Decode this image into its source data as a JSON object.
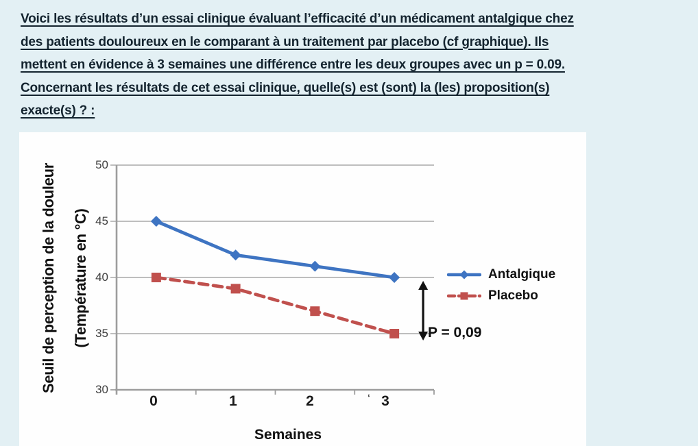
{
  "page": {
    "background_color": "#e3f0f4",
    "panel_color": "#fefefe",
    "question_text_color": "#14242f"
  },
  "question": {
    "lines": [
      "Voici les résultats d’un essai clinique évaluant l’efficacité d’un médicament antalgique chez",
      "des patients douloureux en le comparant à un traitement par placebo (cf graphique). Ils",
      "mettent en évidence à 3 semaines une différence entre les deux groupes avec un p = 0.09.",
      "Concernant les résultats de cet essai clinique, quelle(s) est (sont) la (les) proposition(s)",
      "exacte(s) ? :"
    ]
  },
  "chart_data": {
    "type": "line",
    "title": "",
    "xlabel": "Semaines",
    "ylabel_line1": "Seuil de perception de la douleur",
    "ylabel_line2": "(Température en °C)",
    "categories": [
      "0",
      "1",
      "2",
      "3"
    ],
    "x_tick_artifact": "‘",
    "x": [
      0,
      1,
      2,
      3
    ],
    "yticks": [
      "50",
      "45",
      "40",
      "35",
      "30"
    ],
    "ylim": [
      30,
      50
    ],
    "grid": true,
    "legend_position": "right",
    "series": [
      {
        "name": "Antalgique",
        "values": [
          45,
          42,
          41,
          40
        ],
        "color": "#3e74c2",
        "marker": "diamond",
        "line_style": "solid"
      },
      {
        "name": "Placebo",
        "values": [
          40,
          39,
          37,
          35
        ],
        "color": "#c0504d",
        "marker": "square",
        "line_style": "dashed"
      }
    ],
    "annotation": {
      "label": "P = 0,09",
      "x": 3,
      "from_y": 40,
      "to_y": 35
    },
    "axis_color": "#9d9d9d",
    "grid_color": "#a9a9a9",
    "tick_label_color": "#3f3f3f",
    "annotation_color": "#111111"
  }
}
